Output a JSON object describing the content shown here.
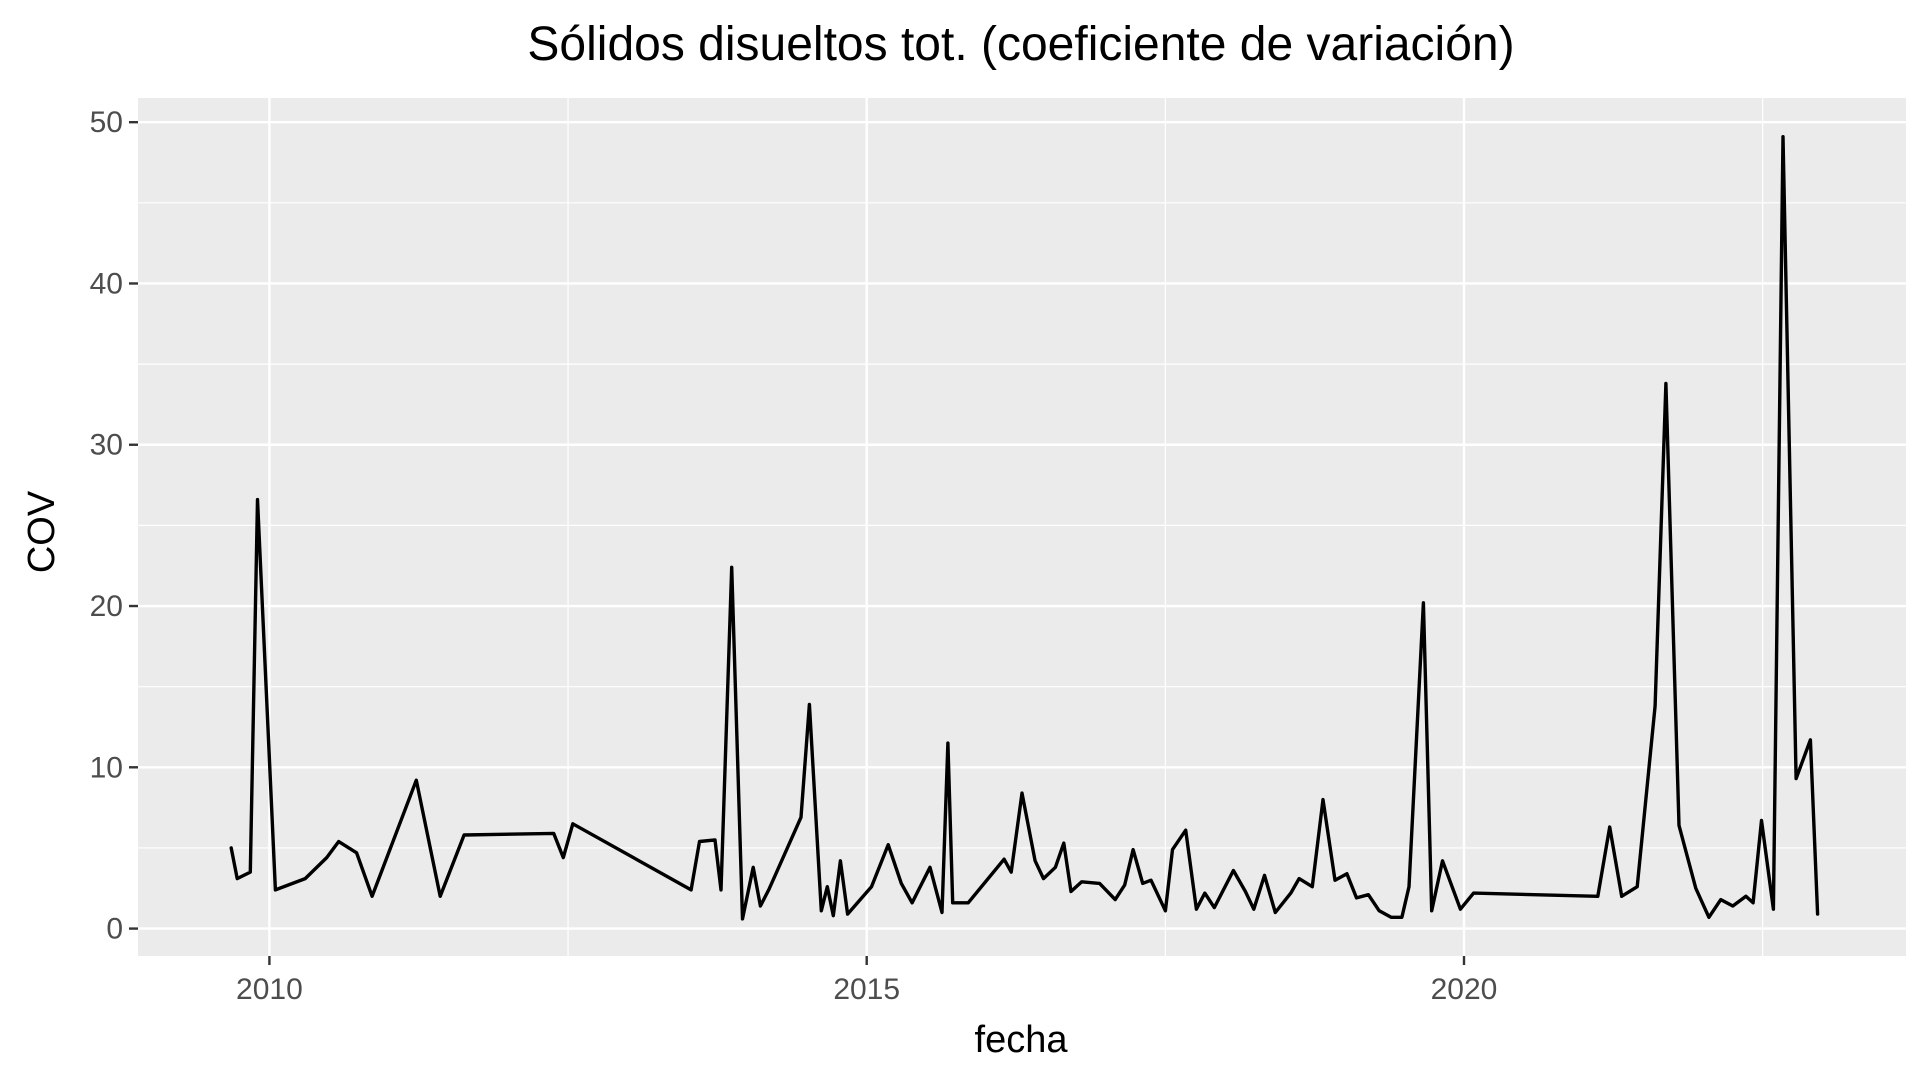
{
  "chart_data": {
    "type": "line",
    "title": "Sólidos disueltos tot. (coeficiente de variación)",
    "xlabel": "fecha",
    "ylabel": "COV",
    "xlim": [
      2008.9,
      2023.7
    ],
    "ylim": [
      -1.7,
      51.5
    ],
    "x_ticks": [
      2010,
      2015,
      2020
    ],
    "x_tick_labels": [
      "2010",
      "2015",
      "2020"
    ],
    "y_ticks": [
      0,
      10,
      20,
      30,
      40,
      50
    ],
    "y_tick_labels": [
      "0",
      "10",
      "20",
      "30",
      "40",
      "50"
    ],
    "grid": true,
    "legend": "none",
    "line_color": "#000000",
    "panel_color": "#ebebeb",
    "series": [
      {
        "x": [
          2009.68,
          2009.73,
          2009.84,
          2009.9,
          2010.05,
          2010.3,
          2010.48,
          2010.58,
          2010.73,
          2010.86,
          2011.23,
          2011.43,
          2011.63,
          2012.38,
          2012.46,
          2012.54,
          2013.53,
          2013.6,
          2013.73,
          2013.78,
          2013.87,
          2013.96,
          2014.05,
          2014.11,
          2014.18,
          2014.45,
          2014.52,
          2014.62,
          2014.67,
          2014.72,
          2014.78,
          2014.84,
          2015.04,
          2015.18,
          2015.29,
          2015.38,
          2015.53,
          2015.63,
          2015.68,
          2015.72,
          2015.85,
          2016.15,
          2016.21,
          2016.3,
          2016.41,
          2016.48,
          2016.58,
          2016.65,
          2016.71,
          2016.8,
          2016.95,
          2017.08,
          2017.16,
          2017.23,
          2017.31,
          2017.38,
          2017.5,
          2017.56,
          2017.67,
          2017.76,
          2017.83,
          2017.91,
          2018.07,
          2018.17,
          2018.24,
          2018.33,
          2018.42,
          2018.55,
          2018.62,
          2018.73,
          2018.82,
          2018.92,
          2019.02,
          2019.1,
          2019.2,
          2019.29,
          2019.39,
          2019.48,
          2019.54,
          2019.66,
          2019.73,
          2019.82,
          2019.97,
          2020.08,
          2021.12,
          2021.22,
          2021.32,
          2021.45,
          2021.6,
          2021.69,
          2021.8,
          2021.94,
          2022.05,
          2022.15,
          2022.25,
          2022.36,
          2022.42,
          2022.49,
          2022.59,
          2022.67,
          2022.78,
          2022.9,
          2022.96
        ],
        "y": [
          5.0,
          3.1,
          3.5,
          26.6,
          2.4,
          3.1,
          4.4,
          5.4,
          4.7,
          2.0,
          9.2,
          2.0,
          5.8,
          5.9,
          4.4,
          6.5,
          2.4,
          5.4,
          5.5,
          2.4,
          22.4,
          0.6,
          3.8,
          1.4,
          2.4,
          6.9,
          13.9,
          1.1,
          2.6,
          0.8,
          4.2,
          0.9,
          2.6,
          5.2,
          2.8,
          1.6,
          3.8,
          1.0,
          11.5,
          1.6,
          1.6,
          4.3,
          3.5,
          8.4,
          4.2,
          3.1,
          3.8,
          5.3,
          2.3,
          2.9,
          2.8,
          1.8,
          2.7,
          4.9,
          2.8,
          3.0,
          1.1,
          4.9,
          6.1,
          1.2,
          2.2,
          1.3,
          3.6,
          2.3,
          1.2,
          3.3,
          1.0,
          2.2,
          3.1,
          2.6,
          8.0,
          3.0,
          3.4,
          1.9,
          2.1,
          1.1,
          0.7,
          0.7,
          2.6,
          20.2,
          1.1,
          4.2,
          1.2,
          2.2,
          2.0,
          6.3,
          2.0,
          2.6,
          13.8,
          33.8,
          6.4,
          2.5,
          0.7,
          1.8,
          1.4,
          2.0,
          1.6,
          6.7,
          1.2,
          49.1,
          9.3,
          11.7,
          0.9
        ]
      }
    ]
  }
}
